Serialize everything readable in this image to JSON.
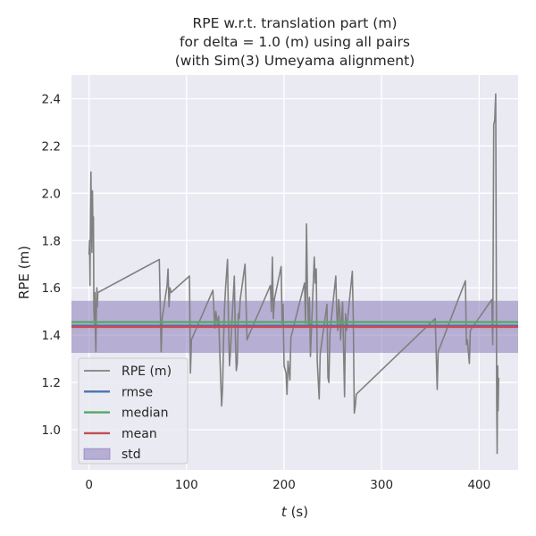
{
  "chart_data": {
    "type": "line",
    "title_lines": [
      "RPE w.r.t. translation part (m)",
      "for delta = 1.0 (m) using all pairs",
      "(with Sim(3) Umeyama alignment)"
    ],
    "xlabel_var": "t",
    "xlabel_unit": " (s)",
    "ylabel": "RPE (m)",
    "xlim": [
      -18,
      440
    ],
    "ylim": [
      0.83,
      2.5
    ],
    "xticks": [
      0,
      100,
      200,
      300,
      400
    ],
    "yticks": [
      1.0,
      1.2,
      1.4,
      1.6,
      1.8,
      2.0,
      2.2,
      2.4
    ],
    "ytick_labels": [
      "1.0",
      "1.2",
      "1.4",
      "1.6",
      "1.8",
      "2.0",
      "2.2",
      "2.4"
    ],
    "grid": true,
    "legend_position": "lower-left",
    "stats": {
      "rmse": 1.44,
      "median": 1.455,
      "mean": 1.435,
      "std_band": [
        1.325,
        1.545
      ]
    },
    "colors": {
      "rpe": "#808080",
      "rmse": "#4c72b0",
      "median": "#55a868",
      "mean": "#c44e52",
      "std": "#8172b3",
      "plot_bg": "#eaeaf2",
      "grid": "#ffffff"
    },
    "legend": [
      {
        "key": "rpe",
        "label": "RPE (m)",
        "kind": "line"
      },
      {
        "key": "rmse",
        "label": "rmse",
        "kind": "line"
      },
      {
        "key": "median",
        "label": "median",
        "kind": "line"
      },
      {
        "key": "mean",
        "label": "mean",
        "kind": "line"
      },
      {
        "key": "std",
        "label": "std",
        "kind": "patch"
      }
    ],
    "series": [
      {
        "label": "RPE (m)",
        "x": [
          0,
          0.5,
          1,
          1.5,
          2,
          2.5,
          3,
          3.5,
          4,
          4.5,
          5,
          5.5,
          6,
          6.5,
          7,
          7.5,
          8,
          8.5,
          9,
          72,
          74,
          75,
          80,
          81,
          82,
          83,
          84,
          103,
          104,
          105,
          127,
          129,
          130,
          132,
          133,
          134,
          136,
          137,
          138,
          139,
          140,
          142,
          143,
          144,
          145,
          149,
          150,
          151,
          152,
          153,
          154,
          155,
          160,
          162,
          164,
          186,
          187,
          188,
          189,
          190,
          197,
          198,
          199,
          200,
          202,
          203,
          204,
          206,
          207,
          221,
          222,
          223,
          224,
          225,
          226,
          227,
          231,
          232,
          233,
          234,
          236,
          237,
          244,
          245,
          246,
          247,
          253,
          254,
          255,
          256,
          257,
          258,
          259,
          260,
          262,
          263,
          264,
          270,
          271,
          272,
          273,
          274,
          355,
          357,
          358,
          386,
          387,
          388,
          390,
          391,
          413,
          414,
          415,
          416,
          417,
          418,
          418.5,
          419,
          419.5,
          420
        ],
        "y": [
          1.74,
          1.8,
          1.61,
          1.92,
          2.09,
          1.88,
          1.75,
          2.01,
          1.85,
          1.9,
          1.51,
          1.45,
          1.58,
          1.43,
          1.33,
          1.48,
          1.6,
          1.52,
          1.58,
          1.72,
          1.33,
          1.47,
          1.61,
          1.68,
          1.52,
          1.6,
          1.58,
          1.65,
          1.24,
          1.38,
          1.59,
          1.43,
          1.5,
          1.44,
          1.48,
          1.34,
          1.1,
          1.18,
          1.38,
          1.52,
          1.6,
          1.72,
          1.45,
          1.27,
          1.33,
          1.65,
          1.41,
          1.25,
          1.28,
          1.49,
          1.47,
          1.55,
          1.7,
          1.38,
          1.4,
          1.61,
          1.5,
          1.73,
          1.47,
          1.55,
          1.69,
          1.45,
          1.53,
          1.27,
          1.24,
          1.15,
          1.29,
          1.21,
          1.39,
          1.62,
          1.45,
          1.87,
          1.58,
          1.44,
          1.56,
          1.31,
          1.73,
          1.62,
          1.68,
          1.29,
          1.13,
          1.32,
          1.53,
          1.22,
          1.2,
          1.41,
          1.65,
          1.5,
          1.42,
          1.55,
          1.51,
          1.38,
          1.47,
          1.54,
          1.14,
          1.49,
          1.42,
          1.67,
          1.46,
          1.07,
          1.1,
          1.15,
          1.47,
          1.17,
          1.33,
          1.63,
          1.36,
          1.38,
          1.28,
          1.42,
          1.55,
          1.36,
          2.29,
          2.31,
          2.42,
          1.12,
          0.9,
          1.27,
          1.08,
          1.22
        ]
      }
    ]
  }
}
